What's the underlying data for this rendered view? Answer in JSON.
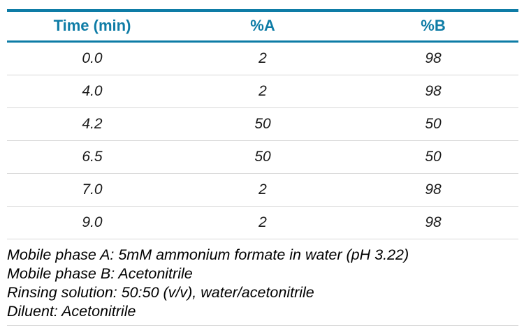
{
  "accent_color": "#0e7ca6",
  "divider_color": "#d8d8d8",
  "table": {
    "columns": [
      "Time (min)",
      "%A",
      "%B"
    ],
    "rows": [
      [
        "0.0",
        "2",
        "98"
      ],
      [
        "4.0",
        "2",
        "98"
      ],
      [
        "4.2",
        "50",
        "50"
      ],
      [
        "6.5",
        "50",
        "50"
      ],
      [
        "7.0",
        "2",
        "98"
      ],
      [
        "9.0",
        "2",
        "98"
      ]
    ]
  },
  "notes": [
    "Mobile phase A: 5mM ammonium formate in water (pH 3.22)",
    "Mobile phase B: Acetonitrile",
    "Rinsing solution: 50:50 (v/v), water/acetonitrile",
    "Diluent: Acetonitrile"
  ],
  "chart_data": {
    "type": "table",
    "title": "",
    "columns": [
      "Time (min)",
      "%A",
      "%B"
    ],
    "rows": [
      [
        0.0,
        2,
        98
      ],
      [
        4.0,
        2,
        98
      ],
      [
        4.2,
        50,
        50
      ],
      [
        6.5,
        50,
        50
      ],
      [
        7.0,
        2,
        98
      ],
      [
        9.0,
        2,
        98
      ]
    ]
  }
}
